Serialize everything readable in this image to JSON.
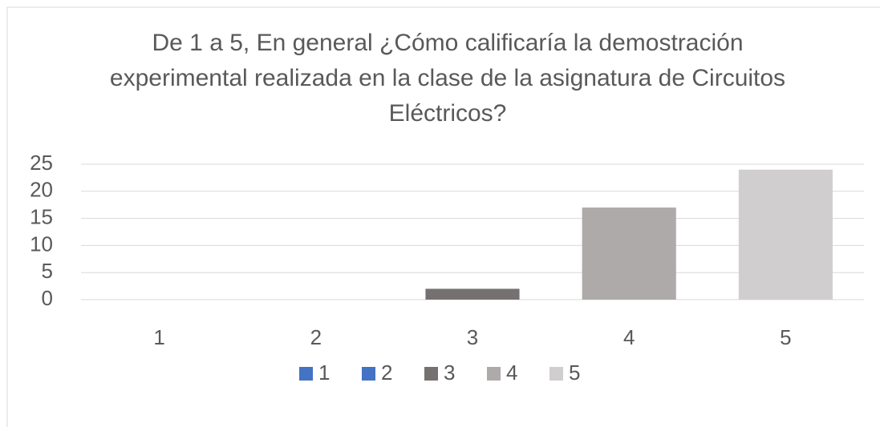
{
  "chart_data": {
    "type": "bar",
    "title": "De 1 a 5, En general ¿Cómo calificaría la demostración experimental realizada en la clase de la asignatura de Circuitos Eléctricos?",
    "categories": [
      "1",
      "2",
      "3",
      "4",
      "5"
    ],
    "values": [
      0,
      0,
      2,
      17,
      24
    ],
    "colors": [
      "#4472c4",
      "#4472c4",
      "#767171",
      "#aeaaaa",
      "#d0cece"
    ],
    "ylim": [
      0,
      25
    ],
    "yticks": [
      0,
      5,
      10,
      15,
      20,
      25
    ],
    "grid": true,
    "legend": "bottom"
  }
}
